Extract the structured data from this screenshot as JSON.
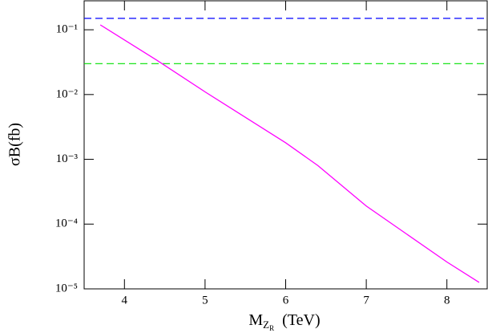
{
  "chart_data": {
    "type": "line",
    "y_label": "σB(fb)",
    "x_label": {
      "symbol": "M",
      "sub": "Z",
      "subsub": "R",
      "unit": "(TeV)"
    },
    "x": [
      3.7,
      4.4,
      5,
      6,
      6.4,
      7,
      8,
      8.4
    ],
    "series": [
      {
        "color": "#ff00ff",
        "values": [
          0.119,
          0.034,
          0.011,
          0.0018,
          0.0008,
          0.00019,
          2.6e-05,
          1.26e-05
        ]
      }
    ],
    "hlines": [
      {
        "value": 0.15,
        "color": "#0000ff"
      },
      {
        "value": 0.03,
        "color": "#00e000"
      }
    ],
    "xlim": [
      3.5,
      8.5
    ],
    "ylim": [
      1e-05,
      0.28
    ],
    "log_y": true,
    "xticks": [
      4,
      5,
      6,
      7,
      8
    ],
    "yticks": [
      {
        "value": 0.1,
        "label": "10⁻¹"
      },
      {
        "value": 0.01,
        "label": "10⁻²"
      },
      {
        "value": 0.001,
        "label": "10⁻³"
      },
      {
        "value": 0.0001,
        "label": "10⁻⁴"
      },
      {
        "value": 1e-05,
        "label": "10⁻⁵"
      }
    ]
  }
}
